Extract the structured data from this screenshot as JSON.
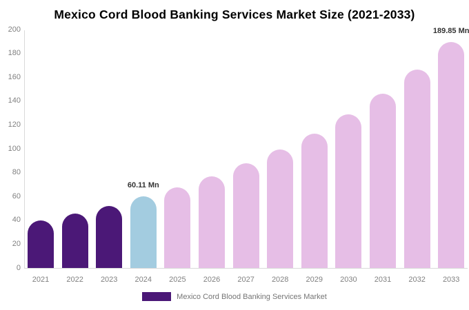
{
  "title": "Mexico Cord Blood Banking Services Market Size (2021-2033)",
  "chart_data": {
    "type": "bar",
    "title": "Mexico Cord Blood Banking Services Market Size (2021-2033)",
    "categories": [
      "2021",
      "2022",
      "2023",
      "2024",
      "2025",
      "2026",
      "2027",
      "2028",
      "2029",
      "2030",
      "2031",
      "2032",
      "2033"
    ],
    "values": [
      40,
      45.5,
      52,
      60.11,
      67.5,
      77,
      88,
      99.5,
      112.5,
      129,
      146,
      166.5,
      189.85
    ],
    "bar_colors": [
      "#4B1877",
      "#4B1877",
      "#4B1877",
      "#A3CCE0",
      "#E6BEE6",
      "#E6BEE6",
      "#E6BEE6",
      "#E6BEE6",
      "#E6BEE6",
      "#E6BEE6",
      "#E6BEE6",
      "#E6BEE6",
      "#E6BEE6"
    ],
    "xlabel": "",
    "ylabel": "",
    "ylim": [
      0,
      200
    ],
    "yticks": [
      0,
      20,
      40,
      60,
      80,
      100,
      120,
      140,
      160,
      180,
      200
    ],
    "grid": false,
    "legend_position": "bottom",
    "legend_label": "Mexico Cord Blood Banking Services Market",
    "annotations": [
      {
        "category": "2024",
        "index": 3,
        "text": "60.11 Mn"
      },
      {
        "category": "2033",
        "index": 12,
        "text": "189.85 Mn"
      }
    ]
  },
  "colors": {
    "background": "#ffffff",
    "title_text": "#000000",
    "axis_line": "#d9d9d9",
    "tick_label": "#808080",
    "annotation_text": "#333333",
    "dark_purple": "#4B1877",
    "light_blue": "#A3CCE0",
    "light_pink": "#E6BEE6",
    "legend_swatch": "#4B1877",
    "legend_text": "#757575"
  }
}
